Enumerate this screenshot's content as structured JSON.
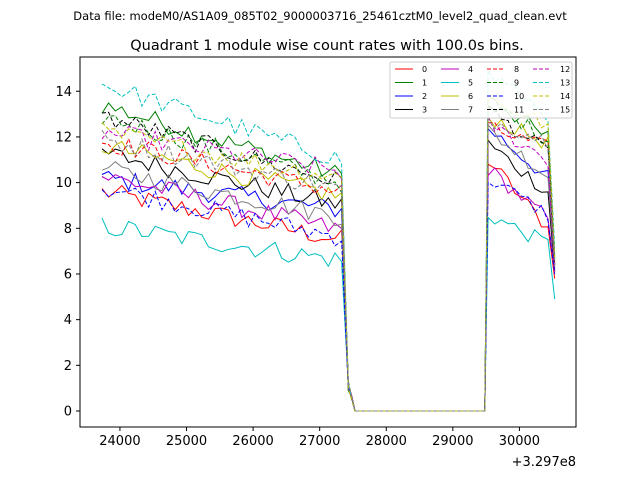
{
  "figure": {
    "suptitle": "Data file: modeM0/AS1A09_085T02_9000003716_25461cztM0_level2_quad_clean.evt"
  },
  "chart_data": {
    "type": "line",
    "title": "Quadrant 1 module wise count rates with 100.0s bins.",
    "xlabel": "",
    "ylabel": "",
    "x_offset_label": "+3.297e8",
    "xlim": [
      23400,
      30850
    ],
    "ylim": [
      -0.7,
      15.5
    ],
    "xticks": [
      24000,
      25000,
      26000,
      27000,
      28000,
      29000,
      30000
    ],
    "xtick_labels": [
      "24000",
      "25000",
      "26000",
      "27000",
      "28000",
      "29000",
      "30000"
    ],
    "yticks": [
      0,
      2,
      4,
      6,
      8,
      10,
      12,
      14
    ],
    "ytick_labels": [
      "0",
      "2",
      "4",
      "6",
      "8",
      "10",
      "12",
      "14"
    ],
    "grid": false,
    "legend": {
      "placement": "top-right",
      "columns": 4
    },
    "segments": {
      "seg1": {
        "x_start": 23730,
        "step": 100,
        "count": 37
      },
      "gap": {
        "x": [
          27430,
          27480,
          27530,
          27630,
          29430,
          29480
        ],
        "values": [
          1.1,
          0.6,
          0.0,
          0.0,
          0.0,
          0.0
        ]
      },
      "seg2": {
        "x_start": 29530,
        "step": 100,
        "count": 11
      }
    },
    "series": [
      {
        "name": "0",
        "color": "#ff0000",
        "dash": false,
        "start": 9.6,
        "end": 7.5,
        "seg2_peak": 11.0,
        "seg2_end": 8.0,
        "last": 5.8
      },
      {
        "name": "1",
        "color": "#008000",
        "dash": false,
        "start": 13.4,
        "end": 10.3,
        "seg2_peak": 13.3,
        "seg2_end": 12.2,
        "last": 6.6
      },
      {
        "name": "2",
        "color": "#0000ff",
        "dash": false,
        "start": 10.2,
        "end": 8.8,
        "seg2_peak": 12.4,
        "seg2_end": 10.2,
        "last": 6.2
      },
      {
        "name": "3",
        "color": "#000000",
        "dash": false,
        "start": 11.3,
        "end": 9.0,
        "seg2_peak": 11.7,
        "seg2_end": 9.6,
        "last": 6.1
      },
      {
        "name": "4",
        "color": "#bf00bf",
        "dash": false,
        "start": 10.3,
        "end": 7.9,
        "seg2_peak": 10.6,
        "seg2_end": 8.4,
        "last": 6.1
      },
      {
        "name": "5",
        "color": "#00bfbf",
        "dash": false,
        "start": 8.1,
        "end": 6.6,
        "seg2_peak": 8.6,
        "seg2_end": 7.3,
        "last": 4.9
      },
      {
        "name": "6",
        "color": "#bfbf00",
        "dash": false,
        "start": 11.6,
        "end": 9.4,
        "seg2_peak": 12.9,
        "seg2_end": 11.7,
        "last": 6.4
      },
      {
        "name": "7",
        "color": "#808080",
        "dash": false,
        "start": 10.6,
        "end": 8.5,
        "seg2_peak": 12.3,
        "seg2_end": 10.3,
        "last": 6.3
      },
      {
        "name": "8",
        "color": "#ff0000",
        "dash": true,
        "start": 11.8,
        "end": 9.6,
        "seg2_peak": 12.4,
        "seg2_end": 11.5,
        "last": 6.5
      },
      {
        "name": "9",
        "color": "#008000",
        "dash": true,
        "start": 12.9,
        "end": 10.0,
        "seg2_peak": 13.6,
        "seg2_end": 11.9,
        "last": 6.8
      },
      {
        "name": "10",
        "color": "#0000ff",
        "dash": true,
        "start": 9.8,
        "end": 7.6,
        "seg2_peak": 10.2,
        "seg2_end": 8.6,
        "last": 6.0
      },
      {
        "name": "11",
        "color": "#000000",
        "dash": true,
        "start": 12.9,
        "end": 10.0,
        "seg2_peak": 13.2,
        "seg2_end": 11.3,
        "last": 6.4
      },
      {
        "name": "12",
        "color": "#bf00bf",
        "dash": true,
        "start": 12.2,
        "end": 10.5,
        "seg2_peak": 12.6,
        "seg2_end": 11.0,
        "last": 6.4
      },
      {
        "name": "13",
        "color": "#00bfbf",
        "dash": true,
        "start": 14.3,
        "end": 11.0,
        "seg2_peak": 14.8,
        "seg2_end": 13.0,
        "last": 7.2
      },
      {
        "name": "14",
        "color": "#bfbf00",
        "dash": true,
        "start": 12.2,
        "end": 10.2,
        "seg2_peak": 13.7,
        "seg2_end": 12.5,
        "last": 6.7
      },
      {
        "name": "15",
        "color": "#808080",
        "dash": true,
        "start": 11.9,
        "end": 9.7,
        "seg2_peak": 12.8,
        "seg2_end": 11.8,
        "last": 6.4
      }
    ]
  }
}
